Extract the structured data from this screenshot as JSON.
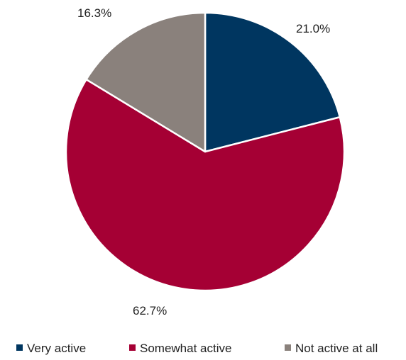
{
  "chart_data": {
    "type": "pie",
    "categories": [
      "Very active",
      "Somewhat active",
      "Not active at all"
    ],
    "values": [
      21.0,
      62.7,
      16.3
    ],
    "labels": [
      "21.0%",
      "62.7%",
      "16.3%"
    ],
    "colors": [
      "#003660",
      "#a50034",
      "#8a817c"
    ],
    "start_angle_deg": 0,
    "direction": "clockwise",
    "legend": {
      "position": "bottom",
      "entries": [
        "Very active",
        "Somewhat active",
        "Not active at all"
      ]
    },
    "title": ""
  }
}
